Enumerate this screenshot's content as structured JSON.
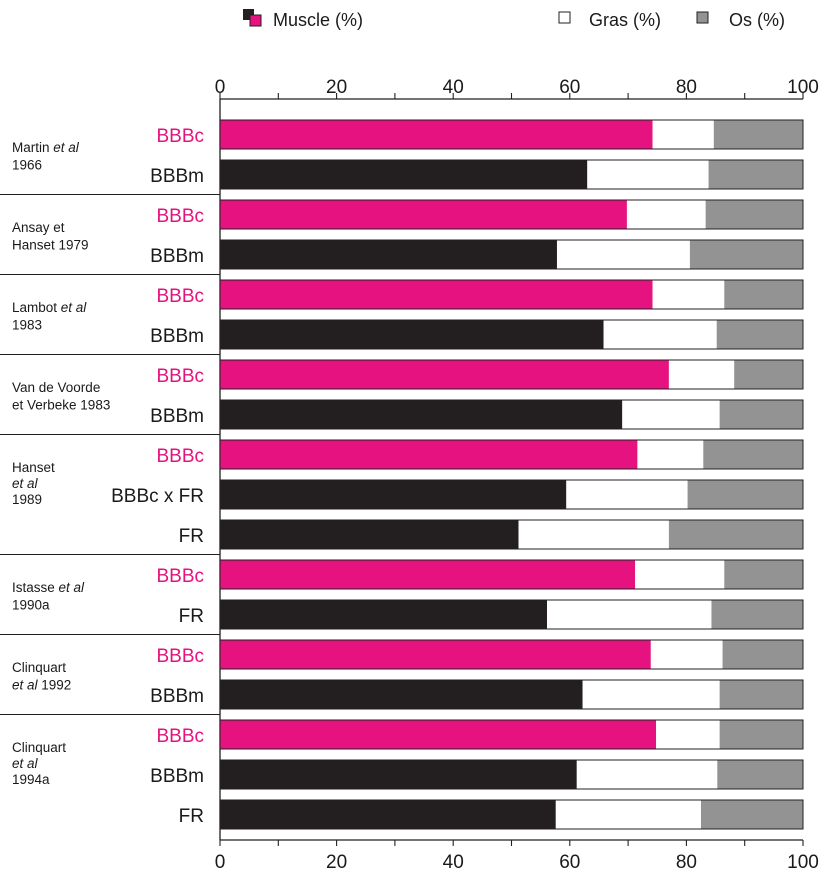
{
  "chart_data": {
    "type": "bar",
    "orientation": "horizontal",
    "stacked": true,
    "xlim": [
      0,
      100
    ],
    "x_ticks": [
      "0",
      "20",
      "40",
      "60",
      "80",
      "100"
    ],
    "grid": false,
    "legend_position": "top",
    "legend": [
      {
        "key": "muscle",
        "label": "Muscle (%)"
      },
      {
        "key": "gras",
        "label": "Gras (%)"
      },
      {
        "key": "os",
        "label": "Os (%)"
      }
    ],
    "colors": {
      "muscle_bbbc": "#e5127f",
      "muscle_other": "#231f20",
      "gras": "#ffffff",
      "os": "#939393",
      "label_bbbc": "#e5127f",
      "label_other": "#1a1a1a"
    },
    "groups": [
      {
        "study_lines": [
          [
            {
              "t": "Martin "
            },
            {
              "t": "et al",
              "i": true
            }
          ],
          [
            {
              "t": "1966"
            }
          ]
        ],
        "bars": [
          {
            "label": "BBBc",
            "muscle": 74.2,
            "gras": 10.5,
            "os": 15.3
          },
          {
            "label": "BBBm",
            "muscle": 63.0,
            "gras": 20.8,
            "os": 16.2
          }
        ]
      },
      {
        "study_lines": [
          [
            {
              "t": "Ansay et"
            }
          ],
          [
            {
              "t": "Hanset 1979"
            }
          ]
        ],
        "bars": [
          {
            "label": "BBBc",
            "muscle": 69.8,
            "gras": 13.5,
            "os": 16.7
          },
          {
            "label": "BBBm",
            "muscle": 57.8,
            "gras": 22.8,
            "os": 19.4
          }
        ]
      },
      {
        "study_lines": [
          [
            {
              "t": "Lambot "
            },
            {
              "t": "et al",
              "i": true
            }
          ],
          [
            {
              "t": "1983"
            }
          ]
        ],
        "bars": [
          {
            "label": "BBBc",
            "muscle": 74.2,
            "gras": 12.3,
            "os": 13.5
          },
          {
            "label": "BBBm",
            "muscle": 65.8,
            "gras": 19.4,
            "os": 14.8
          }
        ]
      },
      {
        "study_lines": [
          [
            {
              "t": "Van de Voorde"
            }
          ],
          [
            {
              "t": "et Verbeke 1983"
            }
          ]
        ],
        "bars": [
          {
            "label": "BBBc",
            "muscle": 77.0,
            "gras": 11.2,
            "os": 11.8
          },
          {
            "label": "BBBm",
            "muscle": 69.0,
            "gras": 16.7,
            "os": 14.3
          }
        ]
      },
      {
        "study_lines": [
          [
            {
              "t": "Hanset"
            }
          ],
          [
            {
              "t": "et al",
              "i": true
            }
          ],
          [
            {
              "t": "1989"
            }
          ]
        ],
        "bars": [
          {
            "label": "BBBc",
            "muscle": 71.6,
            "gras": 11.3,
            "os": 17.1
          },
          {
            "label": "BBBc x FR",
            "muscle": 59.4,
            "gras": 20.8,
            "os": 19.8
          },
          {
            "label": "FR",
            "muscle": 51.2,
            "gras": 25.8,
            "os": 23.0
          }
        ]
      },
      {
        "study_lines": [
          [
            {
              "t": "Istasse "
            },
            {
              "t": "et al",
              "i": true
            }
          ],
          [
            {
              "t": "1990a"
            }
          ]
        ],
        "bars": [
          {
            "label": "BBBc",
            "muscle": 71.2,
            "gras": 15.3,
            "os": 13.5
          },
          {
            "label": "FR",
            "muscle": 56.1,
            "gras": 28.2,
            "os": 15.7
          }
        ]
      },
      {
        "study_lines": [
          [
            {
              "t": "Clinquart"
            }
          ],
          [
            {
              "t": "et al",
              "i": true
            },
            {
              "t": " 1992"
            }
          ]
        ],
        "bars": [
          {
            "label": "BBBc",
            "muscle": 73.9,
            "gras": 12.3,
            "os": 13.8
          },
          {
            "label": "BBBm",
            "muscle": 62.2,
            "gras": 23.5,
            "os": 14.3
          }
        ]
      },
      {
        "study_lines": [
          [
            {
              "t": "Clinquart"
            }
          ],
          [
            {
              "t": "et al",
              "i": true
            }
          ],
          [
            {
              "t": "1994a"
            }
          ]
        ],
        "bars": [
          {
            "label": "BBBc",
            "muscle": 74.8,
            "gras": 10.9,
            "os": 14.3
          },
          {
            "label": "BBBm",
            "muscle": 61.2,
            "gras": 24.1,
            "os": 14.7
          },
          {
            "label": "FR",
            "muscle": 57.6,
            "gras": 24.9,
            "os": 17.5
          }
        ]
      }
    ]
  }
}
